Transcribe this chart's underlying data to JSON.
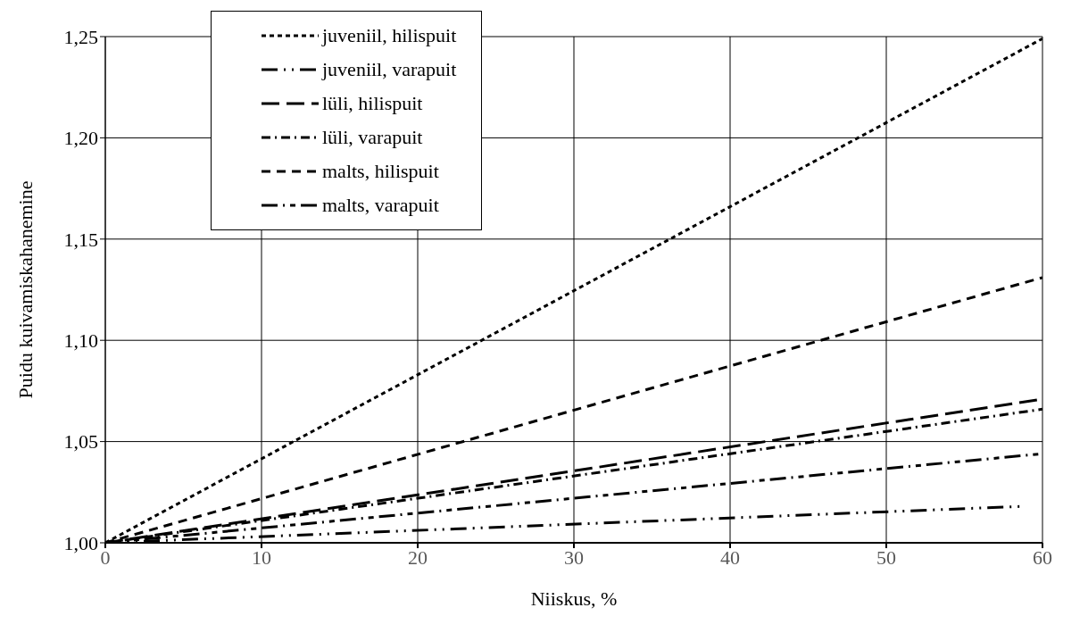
{
  "chart_data": {
    "type": "line",
    "xlabel": "Niiskus, %",
    "ylabel": "Puidu kuivamiskahanemine",
    "x": [
      0,
      60
    ],
    "series": [
      {
        "name": "juveniil, hilispuit",
        "color": "#000000",
        "line_style": "dotted",
        "values": [
          1.0,
          1.249
        ]
      },
      {
        "name": "juveniil, varapuit",
        "color": "#000000",
        "line_style": "longdashdotdot",
        "x": [
          0,
          58.7
        ],
        "values": [
          1.0,
          1.018
        ]
      },
      {
        "name": "lüli, hilispuit",
        "color": "#000000",
        "line_style": "longdash",
        "values": [
          1.0,
          1.071
        ]
      },
      {
        "name": "lüli, varapuit",
        "color": "#000000",
        "line_style": "dashdot",
        "values": [
          1.0,
          1.066
        ]
      },
      {
        "name": "malts, hilispuit",
        "color": "#000000",
        "line_style": "dashed",
        "values": [
          1.0,
          1.131
        ]
      },
      {
        "name": "malts, varapuit",
        "color": "#000000",
        "line_style": "longdashdot",
        "values": [
          1.0,
          1.044
        ]
      }
    ],
    "xlim": [
      0,
      60
    ],
    "xticks": [
      0,
      10,
      20,
      30,
      40,
      50,
      60
    ],
    "ylim": [
      1.0,
      1.25
    ],
    "yticks": [
      {
        "value": 1.0,
        "label": "1,00"
      },
      {
        "value": 1.05,
        "label": "1,05"
      },
      {
        "value": 1.1,
        "label": "1,10"
      },
      {
        "value": 1.15,
        "label": "1,15"
      },
      {
        "value": 1.2,
        "label": "1,20"
      },
      {
        "value": 1.25,
        "label": "1,25"
      }
    ],
    "grid": true,
    "legend": "top left",
    "marker": "none"
  }
}
